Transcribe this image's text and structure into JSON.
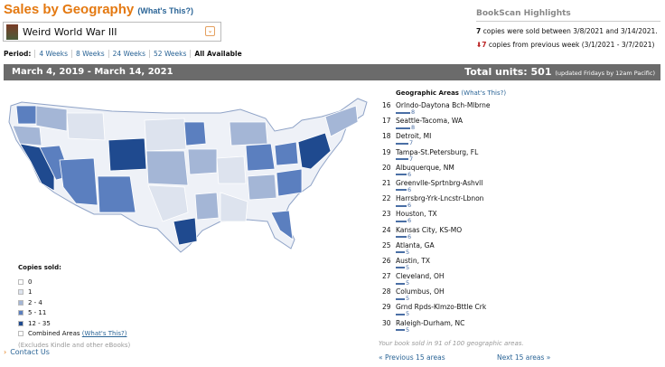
{
  "header": {
    "title": "Sales by Geography",
    "whats_this": "(What's This?)"
  },
  "book": {
    "title": "Weird World War III"
  },
  "period": {
    "label": "Period:",
    "options": [
      "4 Weeks",
      "8 Weeks",
      "24 Weeks",
      "52 Weeks",
      "All Available"
    ],
    "selected": "All Available"
  },
  "range_bar": {
    "dates": "March 4, 2019 - March 14, 2021",
    "total_label": "Total units: 501",
    "note": "(updated Fridays by 12am Pacific)"
  },
  "highlights": {
    "title": "BookScan Highlights",
    "sold_count": "7",
    "sold_text": "copies were sold between 3/8/2021 and 3/14/2021.",
    "change_count": "7",
    "change_text": "copies from previous week (3/1/2021 - 3/7/2021)",
    "change_direction": "down"
  },
  "legend": {
    "title": "Copies sold:",
    "items": [
      {
        "label": "0",
        "color": "#ffffff"
      },
      {
        "label": "1",
        "color": "#dde3ee"
      },
      {
        "label": "2 - 4",
        "color": "#a4b6d6"
      },
      {
        "label": "5 - 11",
        "color": "#5b7fbf"
      },
      {
        "label": "12 - 35",
        "color": "#1f4a8f"
      }
    ],
    "combined": "Combined Areas",
    "combined_link": "(What's This?)",
    "note": "(Excludes Kindle and other eBooks)"
  },
  "contact": "Contact Us",
  "areas": {
    "title": "Geographic Areas",
    "whats_this": "(What's This?)",
    "items": [
      {
        "rank": "16",
        "name": "Orlndo-Daytona Bch-Mlbrne",
        "value": 8
      },
      {
        "rank": "17",
        "name": "Seattle-Tacoma, WA",
        "value": 8
      },
      {
        "rank": "18",
        "name": "Detroit, MI",
        "value": 7
      },
      {
        "rank": "19",
        "name": "Tampa-St.Petersburg, FL",
        "value": 7
      },
      {
        "rank": "20",
        "name": "Albuquerque, NM",
        "value": 6
      },
      {
        "rank": "21",
        "name": "Greenvlle-Sprtnbrg-Ashvll",
        "value": 6
      },
      {
        "rank": "22",
        "name": "Harrsbrg-Yrk-Lncstr-Lbnon",
        "value": 6
      },
      {
        "rank": "23",
        "name": "Houston, TX",
        "value": 6
      },
      {
        "rank": "24",
        "name": "Kansas City, KS-MO",
        "value": 6
      },
      {
        "rank": "25",
        "name": "Atlanta, GA",
        "value": 5
      },
      {
        "rank": "26",
        "name": "Austin, TX",
        "value": 5
      },
      {
        "rank": "27",
        "name": "Cleveland, OH",
        "value": 5
      },
      {
        "rank": "28",
        "name": "Columbus, OH",
        "value": 5
      },
      {
        "rank": "29",
        "name": "Grnd Rpds-Klmzo-Bttle Crk",
        "value": 5
      },
      {
        "rank": "30",
        "name": "Raleigh-Durham, NC",
        "value": 5
      }
    ],
    "footer": "Your book sold in 91 of 100 geographic areas.",
    "prev": "« Previous 15 areas",
    "next": "Next 15 areas »"
  }
}
